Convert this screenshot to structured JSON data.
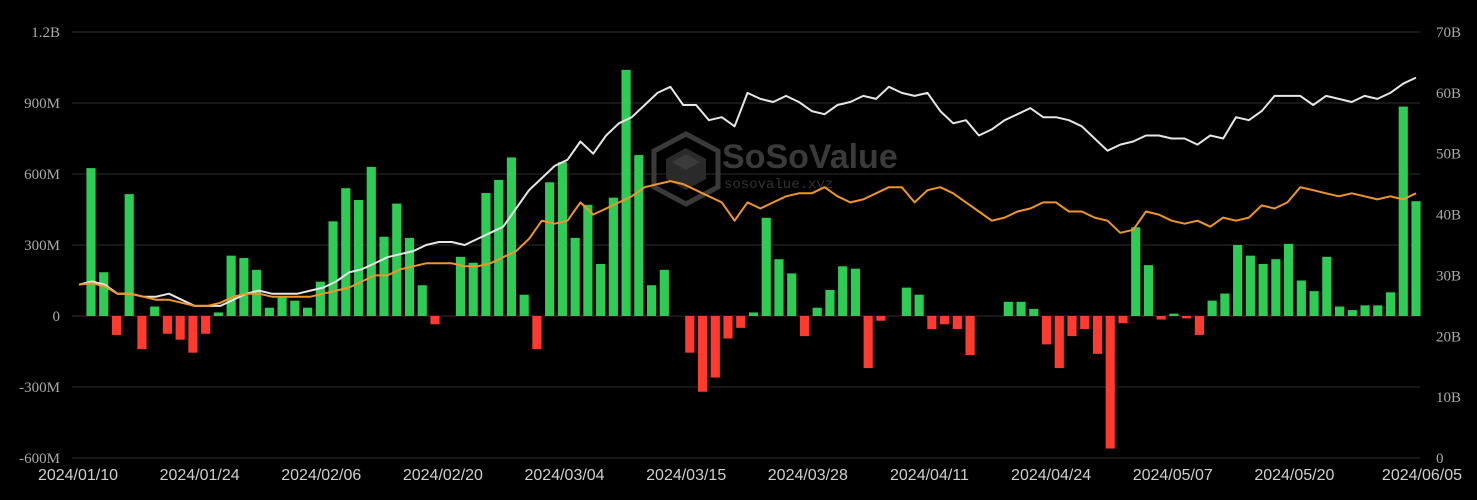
{
  "watermark": {
    "brand": "SoSoValue",
    "url": "sosovalue.xyz"
  },
  "colors": {
    "positive": "#2ecc55",
    "negative": "#ff3b30",
    "white_line": "#e6e6e6",
    "orange_line": "#f0952a",
    "grid": "#2e2e2e"
  },
  "chart_data": {
    "type": "bar",
    "title": "",
    "left_axis": {
      "min": -600,
      "max": 1200,
      "ticks": [
        -600,
        -300,
        0,
        300,
        600,
        900,
        1200
      ],
      "tick_labels": [
        "-600M",
        "-300M",
        "0",
        "300M",
        "600M",
        "900M",
        "1.2B"
      ]
    },
    "right_axis": {
      "min": 0,
      "max": 70,
      "ticks": [
        0,
        10,
        20,
        30,
        40,
        50,
        60,
        70
      ],
      "tick_labels": [
        "0",
        "10B",
        "20B",
        "30B",
        "40B",
        "50B",
        "60B",
        "70B"
      ]
    },
    "x_tick_labels": [
      "2024/01/10",
      "2024/01/24",
      "2024/02/06",
      "2024/02/20",
      "2024/03/04",
      "2024/03/15",
      "2024/03/28",
      "2024/04/11",
      "2024/04/24",
      "2024/05/07",
      "2024/05/20",
      "2024/06/05"
    ],
    "grid": true,
    "series": [
      {
        "type": "bar",
        "values": [
          625,
          185,
          -80,
          515,
          -140,
          40,
          -75,
          -100,
          -155,
          -75,
          15,
          255,
          245,
          195,
          35,
          80,
          65,
          35,
          145,
          400,
          540,
          490,
          630,
          335,
          475,
          330,
          130,
          -35,
          0,
          250,
          225,
          520,
          575,
          670,
          90,
          -140,
          565,
          650,
          330,
          470,
          220,
          500,
          1040,
          680,
          130,
          195,
          0,
          -155,
          -320,
          -260,
          -95,
          -50,
          15,
          415,
          240,
          180,
          -85,
          35,
          110,
          210,
          200,
          -220,
          -20,
          0,
          120,
          90,
          -55,
          -35,
          -55,
          -165,
          0,
          0,
          60,
          60,
          30,
          -120,
          -220,
          -85,
          -55,
          -160,
          -560,
          -30,
          375,
          215,
          -15,
          10,
          -10,
          -80,
          65,
          95,
          300,
          255,
          220,
          240,
          305,
          150,
          105,
          250,
          40,
          25,
          45,
          45,
          100,
          885,
          485
        ]
      },
      {
        "type": "line",
        "axis": "right",
        "color": "white",
        "values": [
          28.5,
          29.0,
          28.5,
          27.0,
          27.0,
          26.5,
          26.5,
          27.0,
          26.0,
          25.0,
          25.0,
          25.0,
          26.0,
          27.0,
          27.5,
          27.0,
          27.0,
          27.0,
          27.5,
          28.0,
          29.0,
          30.5,
          31.0,
          32.0,
          33.0,
          33.5,
          34.0,
          35.0,
          35.5,
          35.5,
          35.0,
          36.0,
          37.0,
          38.0,
          41.0,
          44.0,
          46.0,
          48.0,
          49.0,
          52.0,
          50.0,
          53.0,
          55.0,
          56.0,
          58.0,
          60.0,
          61.0,
          58.0,
          58.0,
          55.5,
          56.0,
          54.5,
          60.0,
          59.0,
          58.5,
          59.5,
          58.5,
          57.0,
          56.5,
          58.0,
          58.5,
          59.5,
          59.0,
          61.0,
          60.0,
          59.5,
          60.0,
          57.0,
          55.0,
          55.5,
          53.0,
          54.0,
          55.5,
          56.5,
          57.5,
          56.0,
          56.0,
          55.5,
          54.5,
          52.5,
          50.5,
          51.5,
          52.0,
          53.0,
          53.0,
          52.5,
          52.5,
          51.5,
          53.0,
          52.5,
          56.0,
          55.5,
          57.0,
          59.5,
          59.5,
          59.5,
          58.0,
          59.5,
          59.0,
          58.5,
          59.5,
          59.0,
          60.0,
          61.5,
          62.5
        ]
      },
      {
        "type": "line",
        "axis": "right",
        "color": "orange",
        "values": [
          28.5,
          28.7,
          28.2,
          27.0,
          27.0,
          26.5,
          26.0,
          26.0,
          25.5,
          25.0,
          25.0,
          25.5,
          26.5,
          27.0,
          27.0,
          26.5,
          26.5,
          26.5,
          26.5,
          27.0,
          27.5,
          28.0,
          29.0,
          30.0,
          30.0,
          31.0,
          31.5,
          32.0,
          32.0,
          32.0,
          31.5,
          31.5,
          32.0,
          33.0,
          34.0,
          36.0,
          39.0,
          38.5,
          39.0,
          42.0,
          40.0,
          41.0,
          42.0,
          43.0,
          44.5,
          45.0,
          45.5,
          45.0,
          44.0,
          43.0,
          42.0,
          39.0,
          42.0,
          41.0,
          42.0,
          43.0,
          43.5,
          43.5,
          44.5,
          43.0,
          42.0,
          42.5,
          43.5,
          44.5,
          44.5,
          42.0,
          44.0,
          44.5,
          43.5,
          42.0,
          40.5,
          39.0,
          39.5,
          40.5,
          41.0,
          42.0,
          42.0,
          40.5,
          40.5,
          39.5,
          39.0,
          37.0,
          37.5,
          40.5,
          40.0,
          39.0,
          38.5,
          39.0,
          38.0,
          39.5,
          39.0,
          39.5,
          41.5,
          41.0,
          42.0,
          44.5,
          44.0,
          43.5,
          43.0,
          43.5,
          43.0,
          42.5,
          43.0,
          42.5,
          43.5
        ]
      }
    ]
  }
}
